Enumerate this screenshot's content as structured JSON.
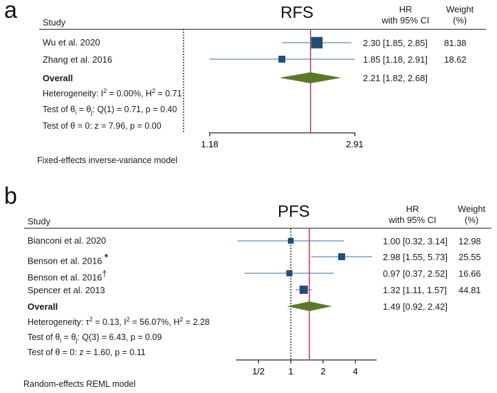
{
  "chart_data": [
    {
      "type": "forest",
      "panel_label": "a",
      "title": "RFS",
      "study_header": "Study",
      "hr_header_line1": "HR",
      "hr_header_line2": "with 95% CI",
      "weight_header_line1": "Weight",
      "weight_header_line2": "(%)",
      "scale": "log",
      "xlim": [
        1.18,
        2.91
      ],
      "xticks": [
        "1.18",
        "2.91"
      ],
      "xtick_values": [
        1.18,
        2.91
      ],
      "null_line": 1.0,
      "overall_line": 2.21,
      "studies": [
        {
          "name": "Wu et al. 2020",
          "hr": 2.3,
          "lo": 1.85,
          "hi": 2.85,
          "ci_text": "2.30 [1.85,  2.85]",
          "weight": 81.38,
          "weight_text": "81.38",
          "lo_arrow": 0.8,
          "hi_arrow": 3.3
        },
        {
          "name": "Zhang et al. 2016",
          "hr": 1.85,
          "lo": 1.18,
          "hi": 2.91,
          "ci_text": "1.85 [1.18,  2.91]",
          "weight": 18.62,
          "weight_text": "18.62"
        }
      ],
      "overall": {
        "label": "Overall",
        "hr": 2.21,
        "lo": 1.82,
        "hi": 2.68,
        "ci_text": "2.21 [1.82,  2.68]"
      },
      "heterogeneity": {
        "prefix": "Heterogeneity: I",
        "sup1": "2",
        "mid": " = 0.00%, H",
        "sup2": "2",
        "suffix": " = 0.71"
      },
      "test_eq": {
        "prefix": "Test of θ",
        "sub1": "i",
        "mid": " = θ",
        "sub2": "j",
        "suffix": ": Q(1) = 0.71, p = 0.40"
      },
      "test_zero": "Test of θ = 0: z = 7.96, p = 0.00",
      "model": "Fixed-effects inverse-variance model"
    },
    {
      "type": "forest",
      "panel_label": "b",
      "title": "PFS",
      "study_header": "Study",
      "hr_header_line1": "HR",
      "hr_header_line2": "with 95% CI",
      "weight_header_line1": "Weight",
      "weight_header_line2": "(%)",
      "scale": "log",
      "xticks": [
        "1/2",
        "1",
        "2",
        "4"
      ],
      "xtick_values": [
        0.5,
        1,
        2,
        4
      ],
      "null_line": 1.0,
      "overall_line": 1.49,
      "studies": [
        {
          "name": "Bianconi et al. 2020",
          "mark": "",
          "hr": 1.0,
          "lo": 0.32,
          "hi": 3.14,
          "ci_text": "1.00 [0.32,  3.14]",
          "weight": 12.98,
          "weight_text": "12.98"
        },
        {
          "name": "Benson et al. 2016",
          "mark": "*",
          "hr": 2.98,
          "lo": 1.55,
          "hi": 5.73,
          "ci_text": "2.98 [1.55,  5.73]",
          "weight": 25.55,
          "weight_text": "25.55"
        },
        {
          "name": "Benson et al. 2016",
          "mark": "†",
          "hr": 0.97,
          "lo": 0.37,
          "hi": 2.52,
          "ci_text": "0.97 [0.37,  2.52]",
          "weight": 16.66,
          "weight_text": "16.66"
        },
        {
          "name": "Spencer et al. 2013",
          "mark": "",
          "hr": 1.32,
          "lo": 1.11,
          "hi": 1.57,
          "ci_text": "1.32 [1.11,  1.57]",
          "weight": 44.81,
          "weight_text": "44.81"
        }
      ],
      "overall": {
        "label": "Overall",
        "hr": 1.49,
        "lo": 0.92,
        "hi": 2.42,
        "ci_text": "1.49 [0.92,  2.42]"
      },
      "heterogeneity": {
        "prefix": "Heterogeneity: τ",
        "sup0": "2",
        "mid0": " = 0.13, I",
        "sup1": "2",
        "mid": " = 56.07%, H",
        "sup2": "2",
        "suffix": " = 2.28"
      },
      "test_eq": {
        "prefix": "Test of θ",
        "sub1": "i",
        "mid": " = θ",
        "sub2": "j",
        "suffix": ": Q(3) = 6.43, p = 0.09"
      },
      "test_zero": "Test of θ = 0: z = 1.60, p = 0.11",
      "model": "Random-effects REML model"
    }
  ],
  "colors": {
    "marker": "#1f4e79",
    "diamond": "#5a7a2a",
    "overall_line": "#d21f4a",
    "ci_line": "#3a6d9a"
  }
}
